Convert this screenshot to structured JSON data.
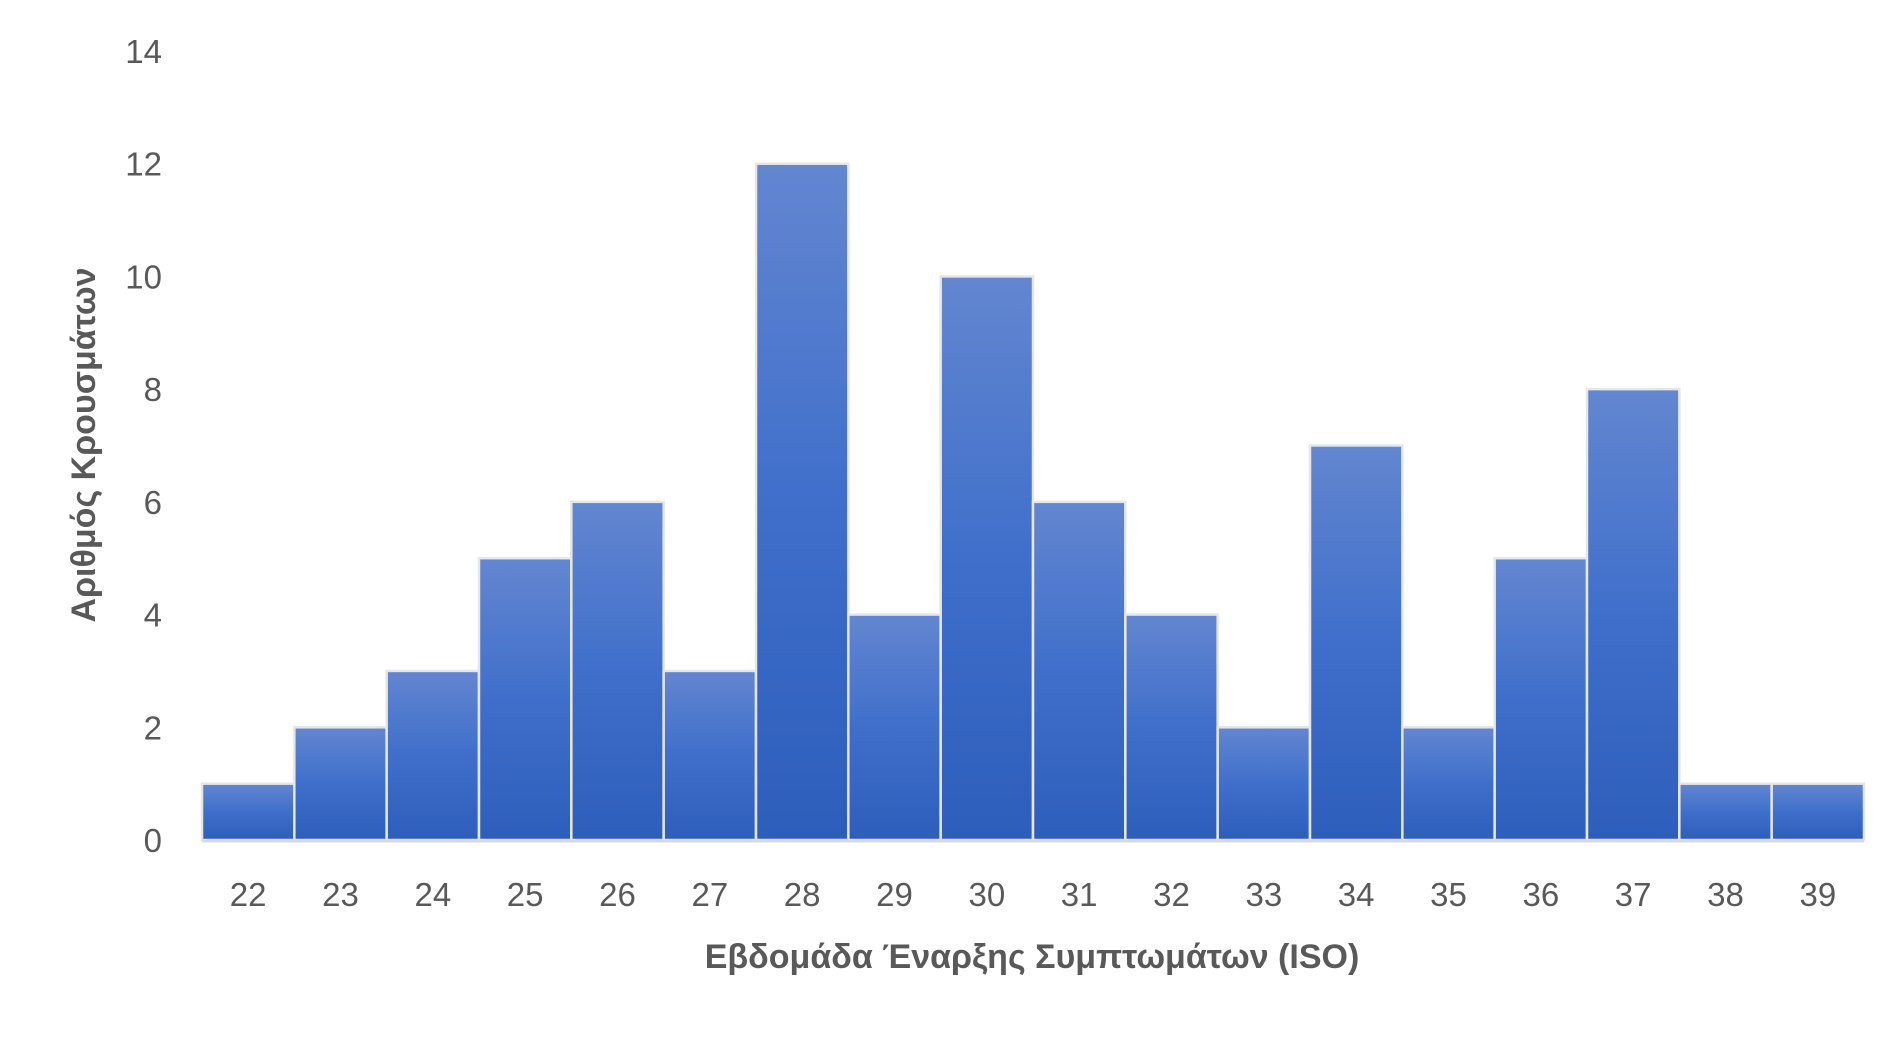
{
  "chart_data": {
    "type": "bar",
    "title": "",
    "xlabel": "Εβδομάδα Έναρξης Συμπτωμάτων (ISO)",
    "ylabel": "Αριθμός Κρουσμάτων",
    "categories": [
      "22",
      "23",
      "24",
      "25",
      "26",
      "27",
      "28",
      "29",
      "30",
      "31",
      "32",
      "33",
      "34",
      "35",
      "36",
      "37",
      "38",
      "39"
    ],
    "values": [
      1,
      2,
      3,
      5,
      6,
      3,
      12,
      4,
      10,
      6,
      4,
      2,
      7,
      2,
      5,
      8,
      1,
      1
    ],
    "ylim": [
      0,
      14
    ],
    "yticks": [
      "0",
      "2",
      "4",
      "6",
      "8",
      "10",
      "12",
      "14"
    ],
    "grid": false,
    "legend": "none",
    "colors": {
      "bar_top": "#6386D0",
      "bar_bottom": "#2E5EBB",
      "bar_edge": "#E6E6E6",
      "axis": "#D9D9D9",
      "text": "#595959"
    }
  }
}
